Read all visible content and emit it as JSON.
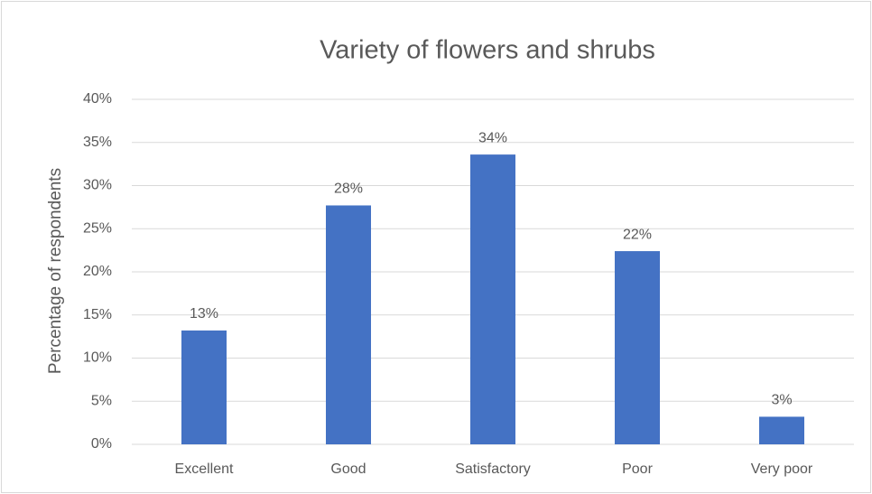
{
  "chart_data": {
    "type": "bar",
    "title": "Variety of flowers and shrubs",
    "y_axis_label": "Percentage of respondents",
    "categories": [
      "Excellent",
      "Good",
      "Satisfactory",
      "Poor",
      "Very poor"
    ],
    "values": [
      13.2,
      27.7,
      33.6,
      22.4,
      3.2
    ],
    "value_labels": [
      "13%",
      "28%",
      "34%",
      "22%",
      "3%"
    ],
    "color": "#4472c4",
    "ylim": [
      0,
      40
    ],
    "yticks": [
      {
        "value": 0,
        "label": "0%"
      },
      {
        "value": 5,
        "label": "5%"
      },
      {
        "value": 10,
        "label": "10%"
      },
      {
        "value": 15,
        "label": "15%"
      },
      {
        "value": 20,
        "label": "20%"
      },
      {
        "value": 25,
        "label": "25%"
      },
      {
        "value": 30,
        "label": "30%"
      },
      {
        "value": 35,
        "label": "35%"
      },
      {
        "value": 40,
        "label": "40%"
      }
    ],
    "grid": true
  }
}
